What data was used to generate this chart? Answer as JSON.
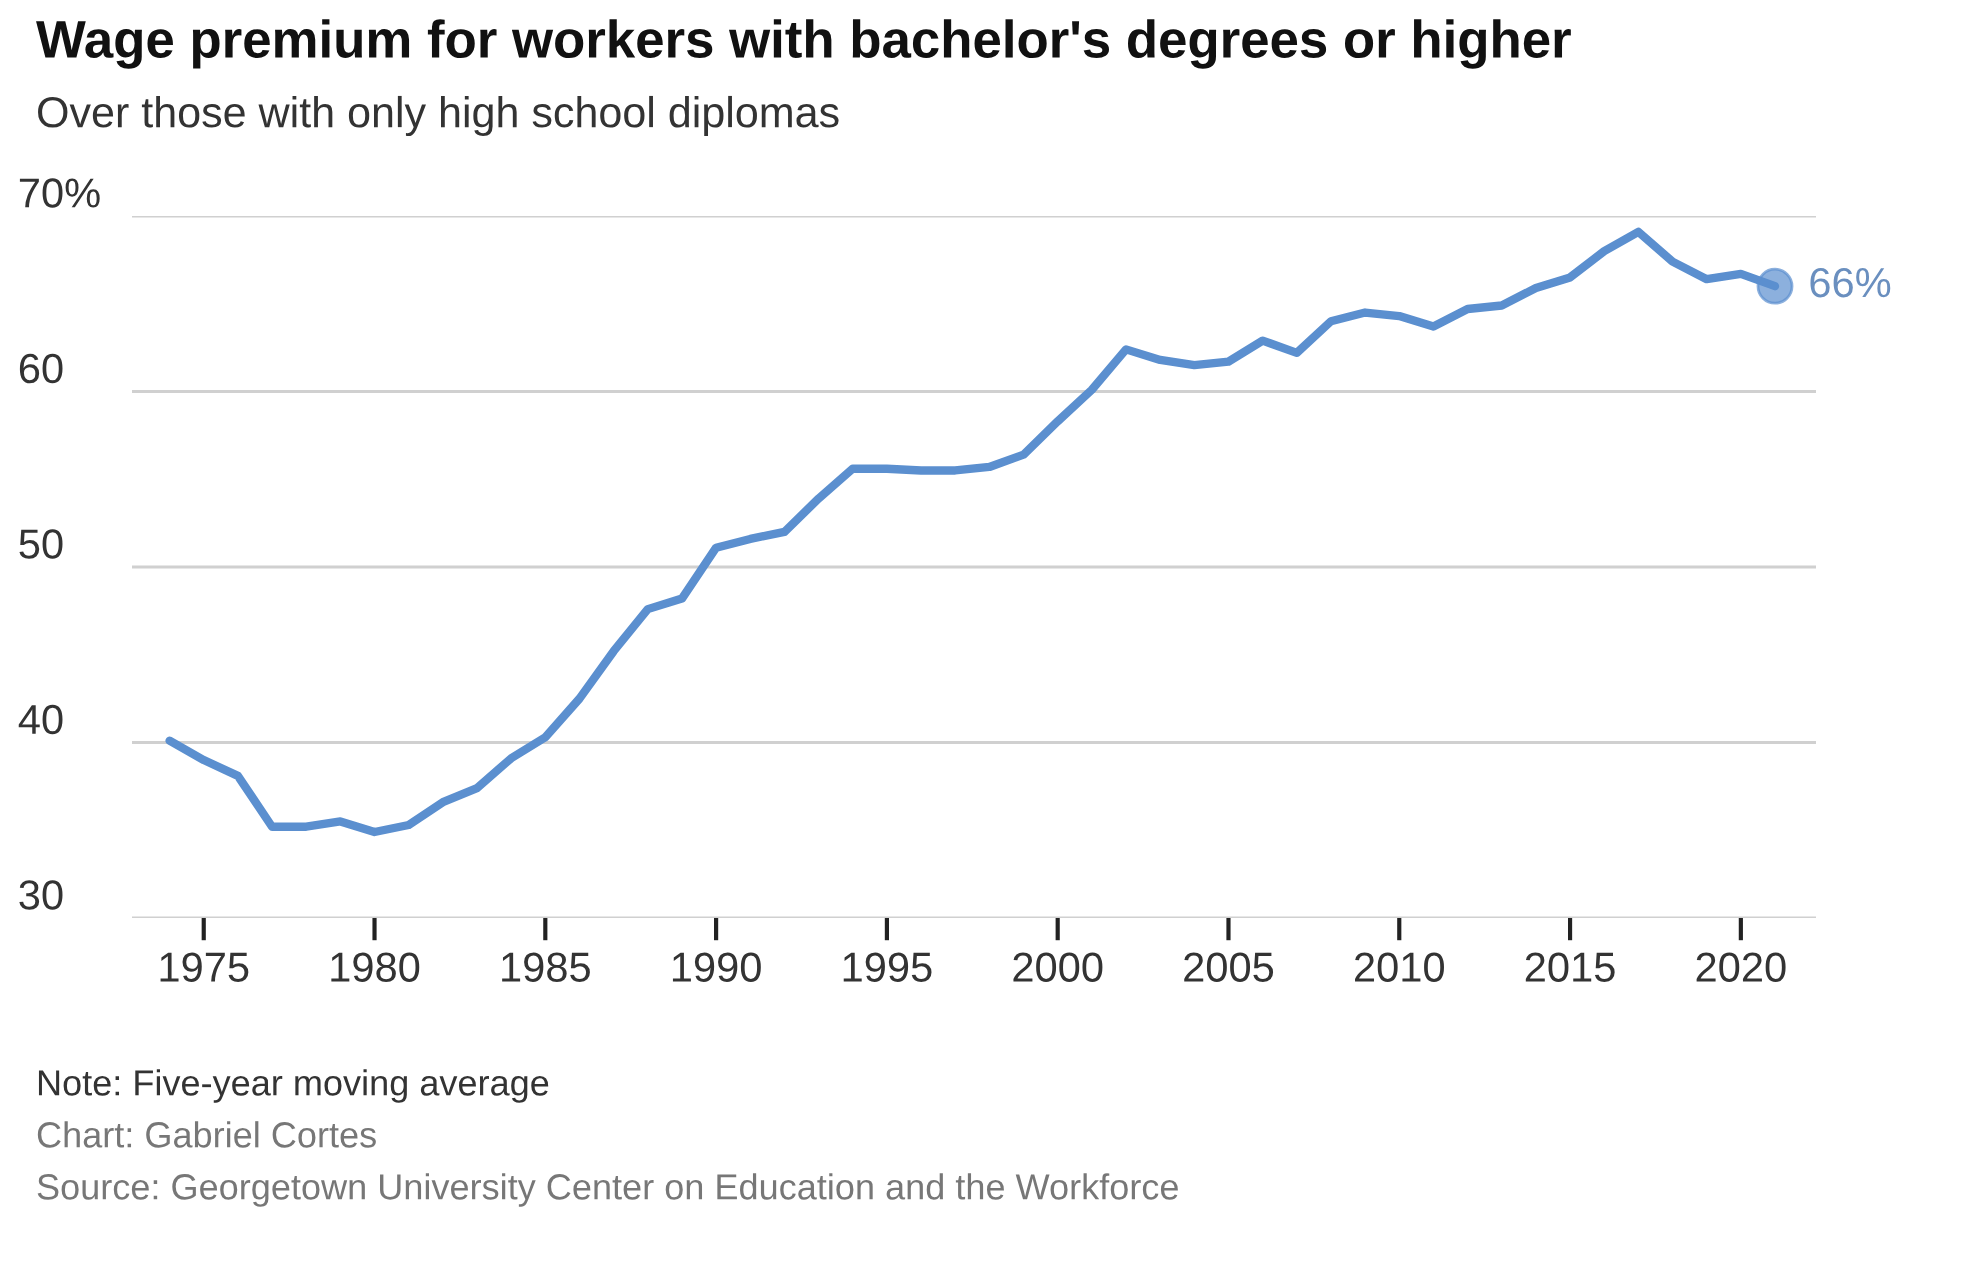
{
  "chart_data": {
    "type": "line",
    "title": "Wage premium for workers with bachelor's degrees or higher",
    "subtitle": "Over those with only high school diplomas",
    "x": [
      1974,
      1975,
      1976,
      1977,
      1978,
      1979,
      1980,
      1981,
      1982,
      1983,
      1984,
      1985,
      1986,
      1987,
      1988,
      1989,
      1990,
      1991,
      1992,
      1993,
      1994,
      1995,
      1996,
      1997,
      1998,
      1999,
      2000,
      2001,
      2002,
      2003,
      2004,
      2005,
      2006,
      2007,
      2008,
      2009,
      2010,
      2011,
      2012,
      2013,
      2014,
      2015,
      2016,
      2017,
      2018,
      2019,
      2020,
      2021
    ],
    "series": [
      {
        "color": "#5b8fcf",
        "values": [
          40.1,
          39.0,
          38.1,
          35.2,
          35.2,
          35.5,
          34.9,
          35.3,
          36.6,
          37.4,
          39.1,
          40.3,
          42.5,
          45.2,
          47.6,
          48.2,
          51.1,
          51.6,
          52.0,
          53.9,
          55.6,
          55.6,
          55.5,
          55.5,
          55.7,
          56.4,
          58.3,
          60.1,
          62.4,
          61.8,
          61.5,
          61.7,
          62.9,
          62.2,
          64.0,
          64.5,
          64.3,
          63.7,
          64.7,
          64.9,
          65.9,
          66.5,
          68.0,
          69.1,
          67.4,
          66.4,
          66.7,
          66.0
        ]
      }
    ],
    "xlim": [
      1972.9,
      2022.2
    ],
    "xticks": [
      1975,
      1980,
      1985,
      1990,
      1995,
      2000,
      2005,
      2010,
      2015,
      2020
    ],
    "ylim": [
      30,
      70
    ],
    "yticks": [
      30,
      40,
      50,
      60,
      {
        "value": 70,
        "label": "70%"
      }
    ],
    "grid": "y",
    "line_style": "solid",
    "annotations": [
      {
        "text": "66%",
        "x": 2021,
        "y": 66.0
      },
      "Note: Five-year moving average",
      "Chart: Gabriel Cortes",
      "Source: Georgetown University Center on Education and the Workforce"
    ]
  }
}
